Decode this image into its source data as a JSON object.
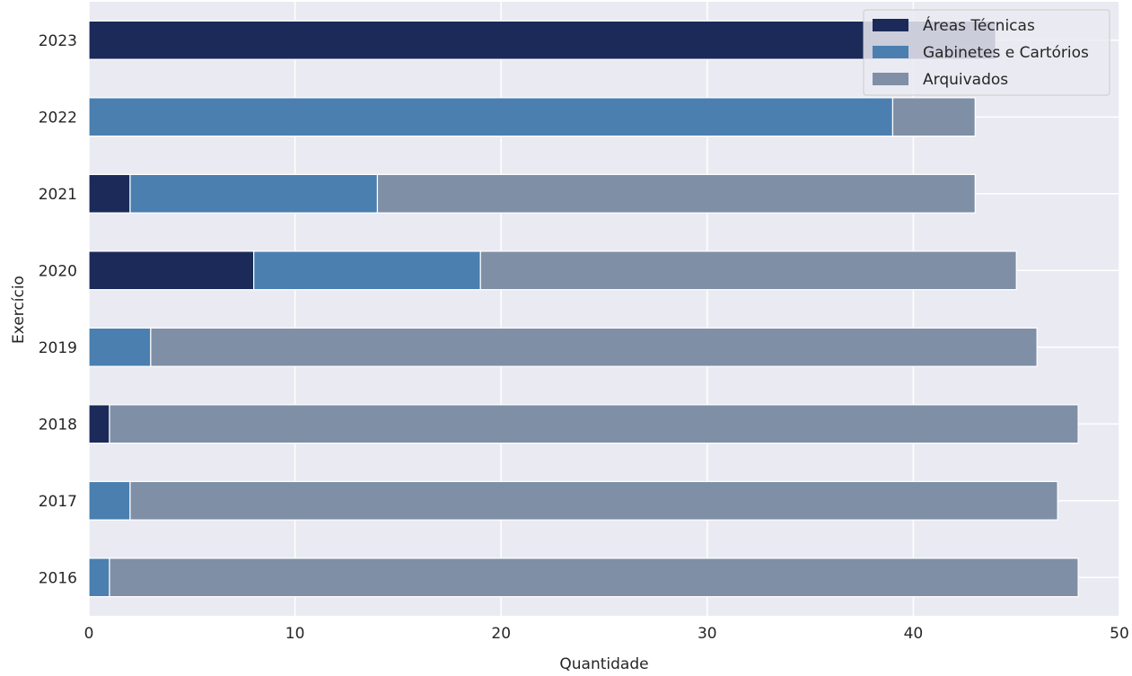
{
  "chart_data": {
    "type": "bar",
    "orientation": "horizontal",
    "stacked": true,
    "categories": [
      "2016",
      "2017",
      "2018",
      "2019",
      "2020",
      "2021",
      "2022",
      "2023"
    ],
    "series": [
      {
        "name": "Áreas Técnicas",
        "color": "#1b2a58",
        "values": [
          0,
          0,
          1,
          0,
          8,
          2,
          0,
          44
        ]
      },
      {
        "name": "Gabinetes e Cartórios",
        "color": "#4a7fb0",
        "values": [
          1,
          2,
          0,
          3,
          11,
          12,
          39,
          0
        ]
      },
      {
        "name": "Arquivados",
        "color": "#7f8fa6",
        "values": [
          47,
          45,
          47,
          43,
          26,
          29,
          4,
          0
        ]
      }
    ],
    "xlabel": "Quantidade",
    "ylabel": "Exercício",
    "xlim": [
      0,
      50
    ],
    "xticks": [
      0,
      10,
      20,
      30,
      40,
      50
    ],
    "grid": true,
    "legend_position": "top-right",
    "colors": {
      "background": "#eaeaf2",
      "grid": "#ffffff"
    }
  }
}
